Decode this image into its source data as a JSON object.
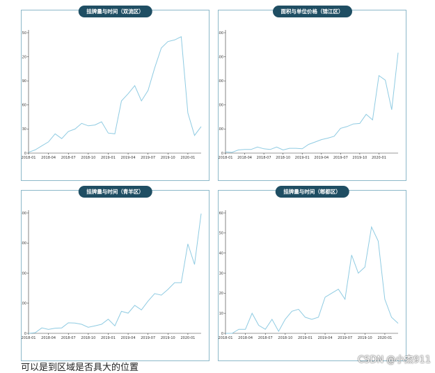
{
  "chart_data": [
    {
      "type": "line",
      "title": "挂牌量与时间（双流区）",
      "ylim": [
        0,
        150
      ],
      "yticks": [
        0,
        30,
        60,
        90,
        120,
        150
      ],
      "xticks": [
        "2018-01",
        "2018-04",
        "2018-07",
        "2018-10",
        "2019-01",
        "2019-04",
        "2019-07",
        "2019-10",
        "2020-01"
      ],
      "values": [
        1,
        4,
        9,
        14,
        24,
        18,
        27,
        30,
        37,
        34,
        35,
        39,
        25,
        24,
        65,
        74,
        84,
        65,
        78,
        106,
        131,
        139,
        141,
        145,
        50,
        22,
        33
      ]
    },
    {
      "type": "line",
      "title": "面积与单位价格（锦江区）",
      "ylim": [
        0,
        500
      ],
      "yticks": [
        0,
        100,
        200,
        300,
        400,
        500
      ],
      "xticks": [
        "2018-01",
        "2018-04",
        "2018-07",
        "2018-10",
        "2019-01",
        "2019-04",
        "2019-07",
        "2019-10",
        "2020-01"
      ],
      "values": [
        5,
        3,
        13,
        15,
        15,
        25,
        18,
        15,
        25,
        13,
        20,
        20,
        18,
        36,
        46,
        56,
        62,
        70,
        103,
        110,
        121,
        123,
        161,
        138,
        322,
        303,
        180,
        417
      ]
    },
    {
      "type": "line",
      "title": "挂牌量与时间（青羊区）",
      "ylim": [
        0,
        400
      ],
      "yticks": [
        0,
        100,
        200,
        300,
        400
      ],
      "xticks": [
        "2018-01",
        "2018-04",
        "2018-07",
        "2018-10",
        "2019-01",
        "2019-04",
        "2019-07",
        "2019-10",
        "2020-01"
      ],
      "values": [
        0,
        2,
        18,
        13,
        17,
        18,
        35,
        34,
        30,
        20,
        25,
        30,
        47,
        25,
        73,
        67,
        93,
        78,
        107,
        132,
        127,
        146,
        168,
        168,
        297,
        229,
        398
      ]
    },
    {
      "type": "line",
      "title": "挂牌量与时间（郫都区）",
      "ylim": [
        0,
        60
      ],
      "yticks": [
        0,
        10,
        20,
        30,
        40,
        50,
        60
      ],
      "xticks": [
        "2018-01",
        "2018-04",
        "2018-07",
        "2018-10",
        "2019-01",
        "2019-04",
        "2019-07",
        "2019-10",
        "2020-01"
      ],
      "values": [
        0,
        0,
        2,
        2,
        10,
        4,
        2,
        7,
        1,
        7,
        11,
        12,
        8,
        7,
        8,
        18,
        20,
        22,
        17,
        39,
        30,
        33,
        53,
        46,
        17,
        8,
        5
      ]
    }
  ],
  "footer": {
    "text": "可以是到区域是否具大的位置",
    "watermark": "CSDN @小杰911"
  }
}
